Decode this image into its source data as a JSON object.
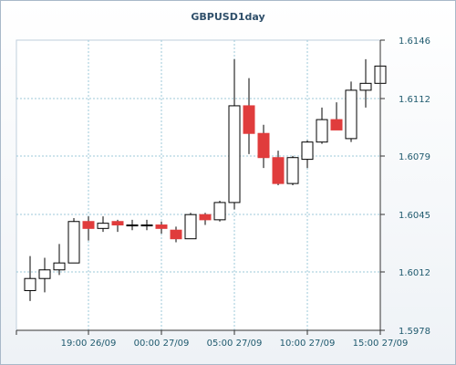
{
  "chart_data": {
    "type": "candlestick",
    "title": "GBPUSD1day",
    "y_ticks": [
      "1.6146",
      "1.6112",
      "1.6079",
      "1.6045",
      "1.6012",
      "1.5978"
    ],
    "ylim": [
      1.5978,
      1.6146
    ],
    "x_ticks": [
      "19:00 26/09",
      "00:00 27/09",
      "05:00 27/09",
      "10:00 27/09",
      "15:00 27/09"
    ],
    "grid": true,
    "colors": {
      "up": "#ffffff",
      "down": "#e03c3c",
      "wick": "#000000",
      "grid": "#9cc8d8"
    },
    "candles": [
      {
        "o": 1.6001,
        "h": 1.6021,
        "l": 1.5995,
        "c": 1.6008
      },
      {
        "o": 1.6008,
        "h": 1.602,
        "l": 1.6,
        "c": 1.6013
      },
      {
        "o": 1.6013,
        "h": 1.6028,
        "l": 1.601,
        "c": 1.6017
      },
      {
        "o": 1.6017,
        "h": 1.6043,
        "l": 1.6017,
        "c": 1.6041
      },
      {
        "o": 1.6041,
        "h": 1.6044,
        "l": 1.603,
        "c": 1.6037
      },
      {
        "o": 1.6037,
        "h": 1.6044,
        "l": 1.6035,
        "c": 1.604
      },
      {
        "o": 1.6041,
        "h": 1.6042,
        "l": 1.6035,
        "c": 1.6039
      },
      {
        "o": 1.6039,
        "h": 1.6042,
        "l": 1.6036,
        "c": 1.6039
      },
      {
        "o": 1.6039,
        "h": 1.6042,
        "l": 1.6036,
        "c": 1.6039
      },
      {
        "o": 1.6039,
        "h": 1.6041,
        "l": 1.6034,
        "c": 1.6037
      },
      {
        "o": 1.6036,
        "h": 1.6038,
        "l": 1.6029,
        "c": 1.6031
      },
      {
        "o": 1.6031,
        "h": 1.6046,
        "l": 1.6031,
        "c": 1.6045
      },
      {
        "o": 1.6045,
        "h": 1.6046,
        "l": 1.6039,
        "c": 1.6042
      },
      {
        "o": 1.6042,
        "h": 1.6053,
        "l": 1.6041,
        "c": 1.6052
      },
      {
        "o": 1.6052,
        "h": 1.6135,
        "l": 1.6048,
        "c": 1.6108
      },
      {
        "o": 1.6108,
        "h": 1.6124,
        "l": 1.608,
        "c": 1.6092
      },
      {
        "o": 1.6092,
        "h": 1.6097,
        "l": 1.6072,
        "c": 1.6078
      },
      {
        "o": 1.6078,
        "h": 1.6082,
        "l": 1.6062,
        "c": 1.6063
      },
      {
        "o": 1.6063,
        "h": 1.6079,
        "l": 1.6062,
        "c": 1.6078
      },
      {
        "o": 1.6077,
        "h": 1.6088,
        "l": 1.6072,
        "c": 1.6087
      },
      {
        "o": 1.6087,
        "h": 1.6107,
        "l": 1.6086,
        "c": 1.61
      },
      {
        "o": 1.61,
        "h": 1.611,
        "l": 1.6094,
        "c": 1.6094
      },
      {
        "o": 1.6089,
        "h": 1.6122,
        "l": 1.6087,
        "c": 1.6117
      },
      {
        "o": 1.6117,
        "h": 1.6135,
        "l": 1.6107,
        "c": 1.6121
      },
      {
        "o": 1.6121,
        "h": 1.6138,
        "l": 1.6116,
        "c": 1.6131
      }
    ]
  }
}
